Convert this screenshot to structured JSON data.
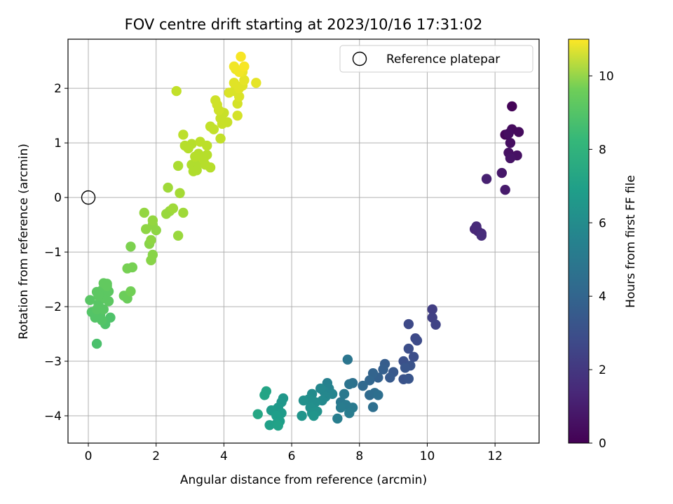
{
  "chart_data": {
    "type": "scatter",
    "title": "FOV centre drift starting at 2023/10/16 17:31:02",
    "xlabel": "Angular distance from reference (arcmin)",
    "ylabel": "Rotation from reference (arcmin)",
    "xlim": [
      -0.6,
      13.3
    ],
    "ylim": [
      -4.5,
      2.9
    ],
    "xticks": [
      0,
      2,
      4,
      6,
      8,
      10,
      12
    ],
    "yticks": [
      -4,
      -3,
      -2,
      -1,
      0,
      1,
      2
    ],
    "grid": true,
    "legend": {
      "position": "top-right",
      "entries": [
        "Reference platepar"
      ]
    },
    "reference_point": {
      "x": 0,
      "y": 0
    },
    "colorbar": {
      "label": "Hours from first FF file",
      "min": 0,
      "max": 11,
      "ticks": [
        0,
        2,
        4,
        6,
        8,
        10
      ],
      "colormap": "viridis"
    },
    "points": [
      {
        "x": 12.5,
        "y": 1.67,
        "c": 0.1
      },
      {
        "x": 12.3,
        "y": 1.15,
        "c": 0.2
      },
      {
        "x": 12.5,
        "y": 1.25,
        "c": 0.3
      },
      {
        "x": 12.7,
        "y": 1.2,
        "c": 0.3
      },
      {
        "x": 12.4,
        "y": 1.17,
        "c": 0.4
      },
      {
        "x": 12.45,
        "y": 1.0,
        "c": 0.4
      },
      {
        "x": 12.4,
        "y": 0.82,
        "c": 0.5
      },
      {
        "x": 12.65,
        "y": 0.77,
        "c": 0.5
      },
      {
        "x": 12.45,
        "y": 0.72,
        "c": 0.6
      },
      {
        "x": 12.2,
        "y": 0.45,
        "c": 0.7
      },
      {
        "x": 12.3,
        "y": 0.14,
        "c": 0.8
      },
      {
        "x": 11.75,
        "y": 0.34,
        "c": 1.0
      },
      {
        "x": 11.4,
        "y": -0.58,
        "c": 1.2
      },
      {
        "x": 11.5,
        "y": -0.62,
        "c": 1.2
      },
      {
        "x": 11.6,
        "y": -0.66,
        "c": 1.3
      },
      {
        "x": 11.45,
        "y": -0.53,
        "c": 1.3
      },
      {
        "x": 11.6,
        "y": -0.7,
        "c": 1.4
      },
      {
        "x": 10.15,
        "y": -2.05,
        "c": 2.0
      },
      {
        "x": 10.15,
        "y": -2.2,
        "c": 2.1
      },
      {
        "x": 10.25,
        "y": -2.33,
        "c": 2.2
      },
      {
        "x": 9.45,
        "y": -2.32,
        "c": 2.4
      },
      {
        "x": 9.65,
        "y": -2.58,
        "c": 2.4
      },
      {
        "x": 9.7,
        "y": -2.62,
        "c": 2.5
      },
      {
        "x": 9.45,
        "y": -2.77,
        "c": 2.6
      },
      {
        "x": 9.6,
        "y": -2.92,
        "c": 2.6
      },
      {
        "x": 9.3,
        "y": -3.0,
        "c": 2.7
      },
      {
        "x": 9.5,
        "y": -3.08,
        "c": 2.8
      },
      {
        "x": 9.3,
        "y": -3.33,
        "c": 2.8
      },
      {
        "x": 9.45,
        "y": -3.32,
        "c": 2.9
      },
      {
        "x": 9.35,
        "y": -3.12,
        "c": 2.9
      },
      {
        "x": 9.0,
        "y": -3.2,
        "c": 3.0
      },
      {
        "x": 8.9,
        "y": -3.3,
        "c": 3.1
      },
      {
        "x": 8.75,
        "y": -3.05,
        "c": 3.2
      },
      {
        "x": 8.7,
        "y": -3.15,
        "c": 3.3
      },
      {
        "x": 8.55,
        "y": -3.3,
        "c": 3.4
      },
      {
        "x": 8.4,
        "y": -3.22,
        "c": 3.5
      },
      {
        "x": 8.3,
        "y": -3.35,
        "c": 3.6
      },
      {
        "x": 8.1,
        "y": -3.45,
        "c": 3.7
      },
      {
        "x": 8.3,
        "y": -3.62,
        "c": 3.8
      },
      {
        "x": 8.45,
        "y": -3.58,
        "c": 3.9
      },
      {
        "x": 8.55,
        "y": -3.62,
        "c": 4.0
      },
      {
        "x": 8.4,
        "y": -3.84,
        "c": 4.0
      },
      {
        "x": 7.8,
        "y": -3.4,
        "c": 4.1
      },
      {
        "x": 7.7,
        "y": -3.42,
        "c": 4.2
      },
      {
        "x": 7.65,
        "y": -2.97,
        "c": 4.3
      },
      {
        "x": 7.55,
        "y": -3.6,
        "c": 4.4
      },
      {
        "x": 7.45,
        "y": -3.75,
        "c": 4.4
      },
      {
        "x": 7.6,
        "y": -3.8,
        "c": 4.5
      },
      {
        "x": 7.8,
        "y": -3.85,
        "c": 4.5
      },
      {
        "x": 7.45,
        "y": -3.85,
        "c": 4.6
      },
      {
        "x": 7.7,
        "y": -3.95,
        "c": 4.6
      },
      {
        "x": 7.35,
        "y": -4.05,
        "c": 4.7
      },
      {
        "x": 7.05,
        "y": -3.4,
        "c": 4.8
      },
      {
        "x": 7.1,
        "y": -3.5,
        "c": 4.9
      },
      {
        "x": 6.95,
        "y": -3.55,
        "c": 5.0
      },
      {
        "x": 7.2,
        "y": -3.6,
        "c": 5.0
      },
      {
        "x": 6.85,
        "y": -3.5,
        "c": 5.1
      },
      {
        "x": 7.0,
        "y": -3.65,
        "c": 5.1
      },
      {
        "x": 6.9,
        "y": -3.72,
        "c": 5.2
      },
      {
        "x": 6.6,
        "y": -3.6,
        "c": 5.3
      },
      {
        "x": 6.5,
        "y": -3.7,
        "c": 5.4
      },
      {
        "x": 6.7,
        "y": -3.75,
        "c": 5.4
      },
      {
        "x": 6.35,
        "y": -3.72,
        "c": 5.5
      },
      {
        "x": 6.55,
        "y": -3.85,
        "c": 5.5
      },
      {
        "x": 6.6,
        "y": -3.95,
        "c": 5.6
      },
      {
        "x": 6.75,
        "y": -3.92,
        "c": 5.6
      },
      {
        "x": 6.3,
        "y": -4.0,
        "c": 5.7
      },
      {
        "x": 6.65,
        "y": -4.0,
        "c": 5.7
      },
      {
        "x": 5.75,
        "y": -3.68,
        "c": 5.8
      },
      {
        "x": 5.7,
        "y": -3.75,
        "c": 5.8
      },
      {
        "x": 5.6,
        "y": -3.85,
        "c": 5.9
      },
      {
        "x": 5.5,
        "y": -3.9,
        "c": 5.9
      },
      {
        "x": 5.7,
        "y": -3.95,
        "c": 6.0
      },
      {
        "x": 5.4,
        "y": -3.9,
        "c": 6.0
      },
      {
        "x": 5.55,
        "y": -4.0,
        "c": 6.1
      },
      {
        "x": 5.65,
        "y": -4.1,
        "c": 6.1
      },
      {
        "x": 5.55,
        "y": -4.15,
        "c": 6.2
      },
      {
        "x": 5.35,
        "y": -4.17,
        "c": 6.2
      },
      {
        "x": 5.6,
        "y": -4.18,
        "c": 6.3
      },
      {
        "x": 5.25,
        "y": -3.55,
        "c": 6.4
      },
      {
        "x": 5.2,
        "y": -3.62,
        "c": 6.4
      },
      {
        "x": 5.0,
        "y": -3.97,
        "c": 6.5
      },
      {
        "x": 0.25,
        "y": -2.68,
        "c": 7.8
      },
      {
        "x": 0.5,
        "y": -2.32,
        "c": 7.9
      },
      {
        "x": 0.65,
        "y": -2.2,
        "c": 7.9
      },
      {
        "x": 0.4,
        "y": -2.25,
        "c": 8.0
      },
      {
        "x": 0.2,
        "y": -2.2,
        "c": 8.0
      },
      {
        "x": 0.1,
        "y": -2.1,
        "c": 8.0
      },
      {
        "x": 0.35,
        "y": -2.15,
        "c": 8.0
      },
      {
        "x": 0.25,
        "y": -2.05,
        "c": 8.1
      },
      {
        "x": 0.45,
        "y": -2.05,
        "c": 8.1
      },
      {
        "x": 0.3,
        "y": -1.95,
        "c": 8.1
      },
      {
        "x": 0.05,
        "y": -1.88,
        "c": 8.1
      },
      {
        "x": 0.5,
        "y": -1.85,
        "c": 8.2
      },
      {
        "x": 0.35,
        "y": -1.75,
        "c": 8.2
      },
      {
        "x": 0.25,
        "y": -1.73,
        "c": 8.2
      },
      {
        "x": 0.4,
        "y": -1.7,
        "c": 8.2
      },
      {
        "x": 0.6,
        "y": -1.72,
        "c": 8.2
      },
      {
        "x": 0.55,
        "y": -1.62,
        "c": 8.3
      },
      {
        "x": 0.45,
        "y": -1.57,
        "c": 8.3
      },
      {
        "x": 0.55,
        "y": -1.58,
        "c": 8.3
      },
      {
        "x": 0.3,
        "y": -1.8,
        "c": 8.2
      },
      {
        "x": 0.6,
        "y": -1.9,
        "c": 8.2
      },
      {
        "x": 1.15,
        "y": -1.85,
        "c": 8.5
      },
      {
        "x": 1.05,
        "y": -1.8,
        "c": 8.5
      },
      {
        "x": 1.25,
        "y": -1.72,
        "c": 8.6
      },
      {
        "x": 1.15,
        "y": -1.3,
        "c": 8.7
      },
      {
        "x": 1.3,
        "y": -1.28,
        "c": 8.7
      },
      {
        "x": 1.25,
        "y": -0.9,
        "c": 8.8
      },
      {
        "x": 1.85,
        "y": -1.15,
        "c": 9.0
      },
      {
        "x": 1.9,
        "y": -1.05,
        "c": 9.0
      },
      {
        "x": 1.8,
        "y": -0.85,
        "c": 9.0
      },
      {
        "x": 1.85,
        "y": -0.78,
        "c": 9.1
      },
      {
        "x": 1.7,
        "y": -0.58,
        "c": 9.1
      },
      {
        "x": 1.9,
        "y": -0.5,
        "c": 9.1
      },
      {
        "x": 2.0,
        "y": -0.6,
        "c": 9.1
      },
      {
        "x": 1.9,
        "y": -0.42,
        "c": 9.2
      },
      {
        "x": 1.65,
        "y": -0.28,
        "c": 9.2
      },
      {
        "x": 2.65,
        "y": -0.7,
        "c": 9.3
      },
      {
        "x": 2.3,
        "y": -0.3,
        "c": 9.3
      },
      {
        "x": 2.4,
        "y": -0.25,
        "c": 9.3
      },
      {
        "x": 2.5,
        "y": -0.2,
        "c": 9.4
      },
      {
        "x": 2.8,
        "y": -0.28,
        "c": 9.4
      },
      {
        "x": 2.35,
        "y": 0.18,
        "c": 9.4
      },
      {
        "x": 2.7,
        "y": 0.08,
        "c": 9.5
      },
      {
        "x": 2.65,
        "y": 0.58,
        "c": 9.6
      },
      {
        "x": 3.05,
        "y": 0.6,
        "c": 9.7
      },
      {
        "x": 3.1,
        "y": 0.48,
        "c": 9.7
      },
      {
        "x": 3.2,
        "y": 0.5,
        "c": 9.7
      },
      {
        "x": 3.3,
        "y": 0.65,
        "c": 9.7
      },
      {
        "x": 3.45,
        "y": 0.6,
        "c": 9.8
      },
      {
        "x": 3.6,
        "y": 0.55,
        "c": 9.8
      },
      {
        "x": 3.4,
        "y": 0.7,
        "c": 9.8
      },
      {
        "x": 3.25,
        "y": 0.8,
        "c": 9.8
      },
      {
        "x": 3.5,
        "y": 0.78,
        "c": 9.8
      },
      {
        "x": 3.15,
        "y": 0.75,
        "c": 9.8
      },
      {
        "x": 2.85,
        "y": 0.95,
        "c": 9.8
      },
      {
        "x": 2.95,
        "y": 0.9,
        "c": 9.8
      },
      {
        "x": 3.05,
        "y": 0.98,
        "c": 9.8
      },
      {
        "x": 3.3,
        "y": 1.02,
        "c": 9.9
      },
      {
        "x": 3.5,
        "y": 0.95,
        "c": 9.9
      },
      {
        "x": 2.8,
        "y": 1.15,
        "c": 9.9
      },
      {
        "x": 3.6,
        "y": 1.3,
        "c": 10.0
      },
      {
        "x": 3.7,
        "y": 1.25,
        "c": 10.0
      },
      {
        "x": 3.9,
        "y": 1.08,
        "c": 10.0
      },
      {
        "x": 2.6,
        "y": 1.95,
        "c": 10.0
      },
      {
        "x": 3.95,
        "y": 1.35,
        "c": 10.1
      },
      {
        "x": 4.1,
        "y": 1.38,
        "c": 10.1
      },
      {
        "x": 3.9,
        "y": 1.45,
        "c": 10.1
      },
      {
        "x": 4.0,
        "y": 1.55,
        "c": 10.1
      },
      {
        "x": 3.85,
        "y": 1.6,
        "c": 10.2
      },
      {
        "x": 3.8,
        "y": 1.7,
        "c": 10.2
      },
      {
        "x": 3.75,
        "y": 1.78,
        "c": 10.2
      },
      {
        "x": 4.4,
        "y": 1.5,
        "c": 10.3
      },
      {
        "x": 4.4,
        "y": 1.72,
        "c": 10.3
      },
      {
        "x": 4.45,
        "y": 1.85,
        "c": 10.4
      },
      {
        "x": 4.15,
        "y": 1.92,
        "c": 10.4
      },
      {
        "x": 4.3,
        "y": 1.95,
        "c": 10.4
      },
      {
        "x": 4.45,
        "y": 2.0,
        "c": 10.5
      },
      {
        "x": 4.55,
        "y": 2.05,
        "c": 10.5
      },
      {
        "x": 4.3,
        "y": 2.1,
        "c": 10.5
      },
      {
        "x": 4.6,
        "y": 2.15,
        "c": 10.6
      },
      {
        "x": 4.95,
        "y": 2.1,
        "c": 10.6
      },
      {
        "x": 4.55,
        "y": 2.3,
        "c": 10.7
      },
      {
        "x": 4.35,
        "y": 2.35,
        "c": 10.7
      },
      {
        "x": 4.3,
        "y": 2.4,
        "c": 10.8
      },
      {
        "x": 4.45,
        "y": 2.3,
        "c": 10.8
      },
      {
        "x": 4.6,
        "y": 2.4,
        "c": 10.9
      },
      {
        "x": 4.5,
        "y": 2.58,
        "c": 10.9
      }
    ]
  }
}
